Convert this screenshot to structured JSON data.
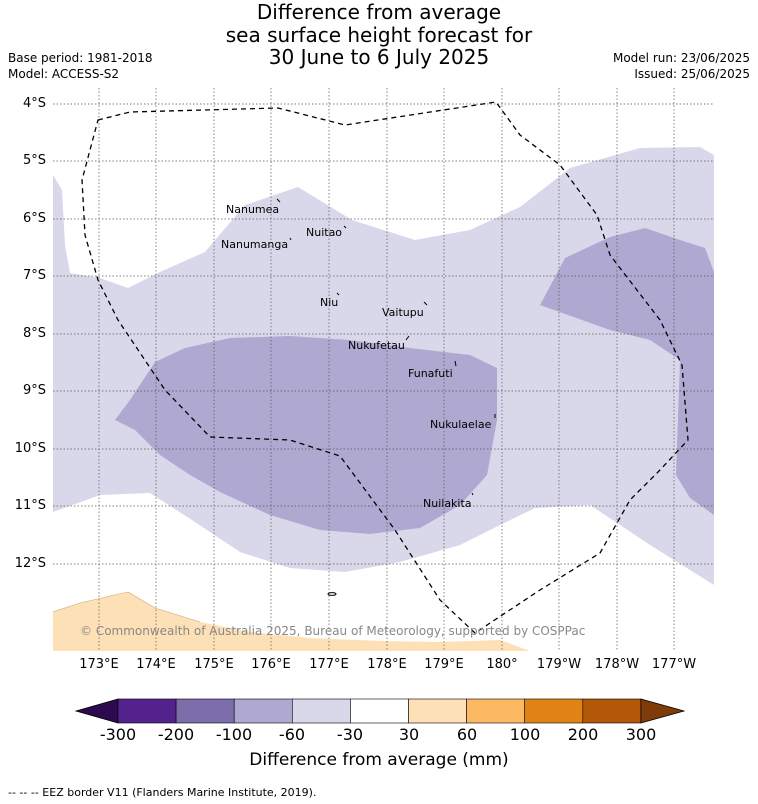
{
  "title": {
    "line1": "Difference from average",
    "line2": "sea surface height forecast for",
    "line3": "30 June to 6 July 2025"
  },
  "meta": {
    "base_period": "Base period: 1981-2018",
    "model": "Model: ACCESS-S2",
    "model_run": "Model run: 23/06/2025",
    "issued": "Issued: 25/06/2025"
  },
  "axes": {
    "lat_labels": [
      "4°S",
      "5°S",
      "6°S",
      "7°S",
      "8°S",
      "9°S",
      "10°S",
      "11°S",
      "12°S"
    ],
    "lon_labels": [
      "173°E",
      "174°E",
      "175°E",
      "176°E",
      "177°E",
      "178°E",
      "179°E",
      "180°",
      "179°W",
      "178°W",
      "177°W"
    ]
  },
  "places": [
    {
      "name": "Nanumea"
    },
    {
      "name": "Nuitao"
    },
    {
      "name": "Nanumanga"
    },
    {
      "name": "Niu"
    },
    {
      "name": "Vaitupu"
    },
    {
      "name": "Nukufetau"
    },
    {
      "name": "Funafuti"
    },
    {
      "name": "Nukulaelae"
    },
    {
      "name": "Nuilakita"
    }
  ],
  "copyright": "© Commonwealth of Australia 2025, Bureau of Meteorology, supported by COSPPac",
  "colorbar": {
    "title": "Difference from average (mm)",
    "ticks": [
      "-300",
      "-200",
      "-100",
      "-60",
      "-30",
      "30",
      "60",
      "100",
      "200",
      "300"
    ],
    "colors": {
      "below": "#2d0a4e",
      "bins": [
        "#54228c",
        "#7d6eab",
        "#afa8d0",
        "#d8d8ea",
        "#ffffff",
        "#fde0b6",
        "#fdb863",
        "#e08214",
        "#b35806"
      ],
      "above": "#7f3b08"
    }
  },
  "eez_note": "-- -- -- EEZ border V11 (Flanders Marine Institute, 2019)."
}
